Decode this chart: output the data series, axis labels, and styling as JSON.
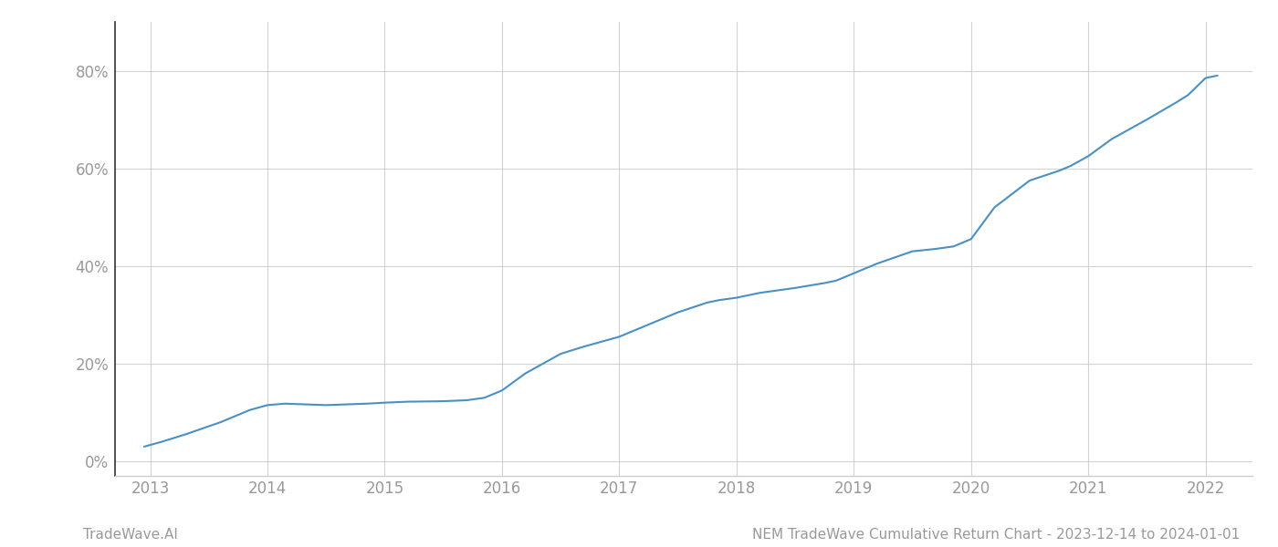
{
  "x_values": [
    2012.95,
    2013.1,
    2013.3,
    2013.6,
    2013.85,
    2014.0,
    2014.15,
    2014.5,
    2014.85,
    2015.0,
    2015.2,
    2015.5,
    2015.7,
    2015.85,
    2016.0,
    2016.2,
    2016.5,
    2016.7,
    2016.85,
    2017.0,
    2017.2,
    2017.5,
    2017.75,
    2017.85,
    2018.0,
    2018.2,
    2018.5,
    2018.75,
    2018.85,
    2019.0,
    2019.2,
    2019.5,
    2019.7,
    2019.85,
    2020.0,
    2020.2,
    2020.5,
    2020.75,
    2020.85,
    2021.0,
    2021.2,
    2021.5,
    2021.75,
    2021.85,
    2022.0,
    2022.1
  ],
  "y_values": [
    3.0,
    4.0,
    5.5,
    8.0,
    10.5,
    11.5,
    11.8,
    11.5,
    11.8,
    12.0,
    12.2,
    12.3,
    12.5,
    13.0,
    14.5,
    18.0,
    22.0,
    23.5,
    24.5,
    25.5,
    27.5,
    30.5,
    32.5,
    33.0,
    33.5,
    34.5,
    35.5,
    36.5,
    37.0,
    38.5,
    40.5,
    43.0,
    43.5,
    44.0,
    45.5,
    52.0,
    57.5,
    59.5,
    60.5,
    62.5,
    66.0,
    70.0,
    73.5,
    75.0,
    78.5,
    79.0
  ],
  "line_color": "#4a90c4",
  "line_width": 1.5,
  "x_tick_labels": [
    "2013",
    "2014",
    "2015",
    "2016",
    "2017",
    "2018",
    "2019",
    "2020",
    "2021",
    "2022"
  ],
  "x_tick_positions": [
    2013,
    2014,
    2015,
    2016,
    2017,
    2018,
    2019,
    2020,
    2021,
    2022
  ],
  "y_ticks": [
    0,
    20,
    40,
    60,
    80
  ],
  "y_tick_labels": [
    "0%",
    "20%",
    "40%",
    "60%",
    "80%"
  ],
  "xlim": [
    2012.7,
    2022.4
  ],
  "ylim": [
    -3,
    90
  ],
  "grid_color": "#c8c8c8",
  "grid_alpha": 0.8,
  "background_color": "#ffffff",
  "footer_left": "TradeWave.AI",
  "footer_right": "NEM TradeWave Cumulative Return Chart - 2023-12-14 to 2024-01-01",
  "footer_fontsize": 11,
  "footer_color": "#999999",
  "tick_label_color": "#999999",
  "tick_label_fontsize": 12,
  "left_spine_color": "#333333",
  "bottom_spine_color": "#cccccc"
}
